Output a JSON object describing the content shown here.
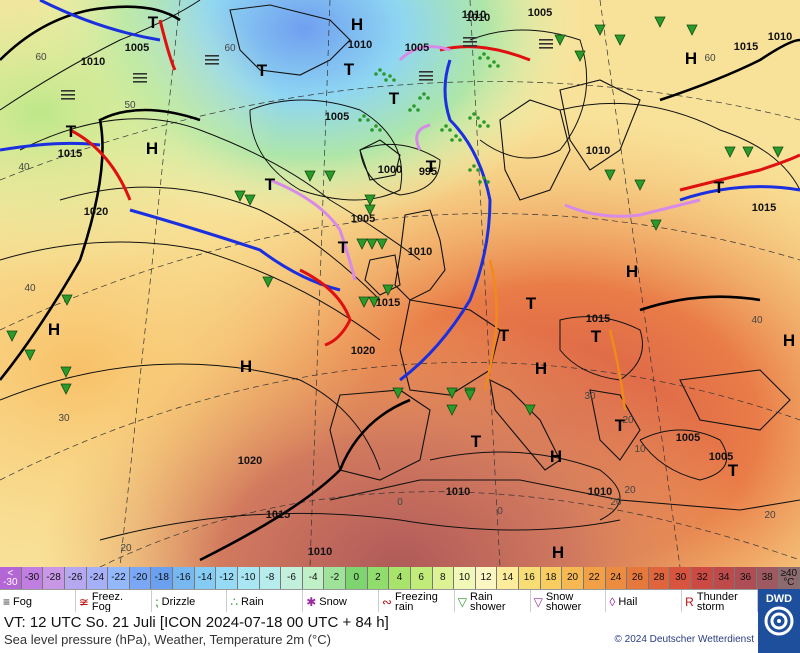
{
  "map": {
    "isobar_labels": [
      "1010",
      "1005",
      "1010",
      "1005",
      "1015",
      "1010",
      "1015",
      "1010",
      "1005",
      "1015",
      "1020",
      "1010",
      "1005",
      "1000",
      "995",
      "1005",
      "1010",
      "1015",
      "1020",
      "1015",
      "1020",
      "1010",
      "1010",
      "1010",
      "1015",
      "1005",
      "1005",
      "1010"
    ],
    "pressure_centers": [
      "H",
      "H",
      "H",
      "H",
      "H",
      "H",
      "H",
      "H",
      "H",
      "H",
      "T",
      "T",
      "T",
      "T",
      "T",
      "T",
      "T",
      "T",
      "T",
      "T",
      "T",
      "T",
      "T",
      "T",
      "T"
    ],
    "temp_labels": [
      "60",
      "60",
      "50",
      "40",
      "40",
      "30",
      "20",
      "60",
      "20",
      "30",
      "0",
      "40",
      "20",
      "20",
      "10",
      "0",
      "20"
    ],
    "front_colors": {
      "cold": "#1a2fe0",
      "warm": "#e01010",
      "occluded": "#d88ae8",
      "trough": "#f08a1a",
      "isobar": "#000000"
    }
  },
  "scale": {
    "labels": [
      "<\n-30",
      "-30",
      "-28",
      "-26",
      "-24",
      "-22",
      "-20",
      "-18",
      "-16",
      "-14",
      "-12",
      "-10",
      "-8",
      "-6",
      "-4",
      "-2",
      "0",
      "2",
      "4",
      "6",
      "8",
      "10",
      "12",
      "14",
      "16",
      "18",
      "20",
      "22",
      "24",
      "26",
      "28",
      "30",
      "32",
      "34",
      "36",
      "38",
      "≥40\n°C"
    ],
    "colors": [
      "#b466d6",
      "#c07ee0",
      "#c898e6",
      "#b6a8f0",
      "#a6b0f8",
      "#94b8fc",
      "#7aa8f4",
      "#6aa0ee",
      "#78b8f0",
      "#84ccf4",
      "#96daf6",
      "#a8e6f4",
      "#b6ecec",
      "#c2f0dc",
      "#bff0c6",
      "#9fe29a",
      "#7ed46e",
      "#90dc6c",
      "#a8e46c",
      "#c2ec7a",
      "#dcf294",
      "#f2f8b8",
      "#fcf6c4",
      "#fcec9c",
      "#f8dc74",
      "#f8cc60",
      "#f6b852",
      "#f2a046",
      "#ec8c40",
      "#e6783c",
      "#e0643c",
      "#d8543e",
      "#cc4a44",
      "#be4a4a",
      "#ae4e54",
      "#9e5a60",
      "#8c6a6e"
    ]
  },
  "legend": [
    {
      "icon": "fog-icon",
      "glyph": "≡",
      "label": "Fog"
    },
    {
      "icon": "freezing-fog-icon",
      "glyph": "≆",
      "label": "Freez.\nFog"
    },
    {
      "icon": "drizzle-icon",
      "glyph": "⁏",
      "label": "Drizzle"
    },
    {
      "icon": "rain-icon",
      "glyph": "∴",
      "label": "Rain"
    },
    {
      "icon": "snow-icon",
      "glyph": "✱",
      "label": "Snow"
    },
    {
      "icon": "freezing-rain-icon",
      "glyph": "∾",
      "label": "Freezing\nrain"
    },
    {
      "icon": "rain-shower-icon",
      "glyph": "▽",
      "label": "Rain\nshower"
    },
    {
      "icon": "snow-shower-icon",
      "glyph": "▽",
      "label": "Snow\nshower"
    },
    {
      "icon": "hail-icon",
      "glyph": "◊",
      "label": "Hail"
    },
    {
      "icon": "thunderstorm-icon",
      "glyph": "R",
      "label": "Thunder\nstorm"
    }
  ],
  "info": {
    "valid_time": "VT: 12 UTC So.   21 Juli [ICON 2024-07-18   00 UTC + 84 h]",
    "description": "Sea level pressure (hPa), Weather, Temperature 2m (°C)",
    "copyright": "© 2024 Deutscher Wetterdienst",
    "logo_text": "DWD"
  }
}
